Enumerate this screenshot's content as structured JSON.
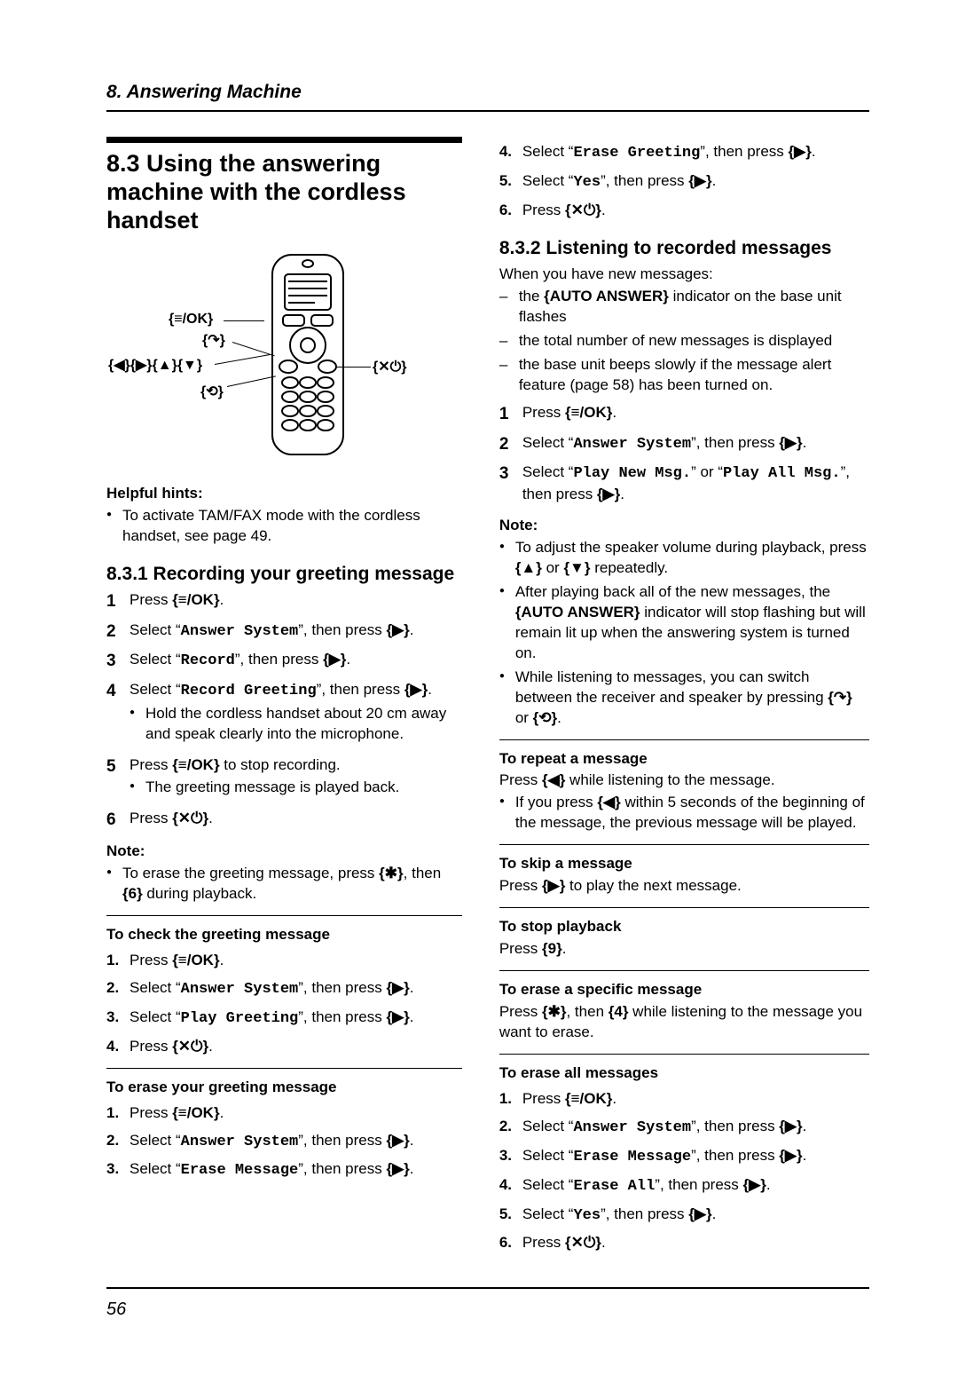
{
  "chapter": "8. Answering Machine",
  "page_number": "56",
  "icons": {
    "menu_ok": "{≡/OK}",
    "talk": "{↷}",
    "left": "{◀}",
    "right": "{▶}",
    "up": "{▲}",
    "down": "{▼}",
    "speaker": "{⟲}",
    "off": "{✕⏻}",
    "star": "{✱}",
    "six": "{6}",
    "nine": "{9}",
    "four": "{4}",
    "auto_answer": "{AUTO ANSWER}"
  },
  "left": {
    "section_title": "8.3 Using the answering machine with the cordless handset",
    "callouts": {
      "menu_ok": "{≡/OK}",
      "talk": "{↷}",
      "nav": "{◀}{▶}{▲}{▼}",
      "speaker": "{⟲}",
      "off": "{✕⏻}"
    },
    "helpful_head": "Helpful hints:",
    "helpful_bullets": [
      "To activate TAM/FAX mode with the cordless handset, see page 49."
    ],
    "sub1_title": "8.3.1 Recording your greeting message",
    "sub1_steps": [
      {
        "text": "Press {≡/OK}."
      },
      {
        "prefix": "Select “",
        "mono": "Answer System",
        "suffix": "”, then press {▶}."
      },
      {
        "prefix": "Select “",
        "mono": "Record",
        "suffix": "”, then press {▶}."
      },
      {
        "prefix": "Select “",
        "mono": "Record Greeting",
        "suffix": "”, then press {▶}.",
        "bullets": [
          "Hold the cordless handset about 20 cm away and speak clearly into the microphone."
        ]
      },
      {
        "text": "Press {≡/OK} to stop recording.",
        "bullets": [
          "The greeting message is played back."
        ]
      },
      {
        "text": "Press {✕⏻}."
      }
    ],
    "note_head": "Note:",
    "sub1_note_bullets": [
      "To erase the greeting message, press {✱}, then {6} during playback."
    ],
    "check_head": "To check the greeting message",
    "check_steps": [
      {
        "text": "Press {≡/OK}."
      },
      {
        "prefix": "Select “",
        "mono": "Answer System",
        "suffix": "”, then press {▶}."
      },
      {
        "prefix": "Select “",
        "mono": "Play Greeting",
        "suffix": "”, then press {▶}."
      },
      {
        "text": "Press {✕⏻}."
      }
    ],
    "erase_head": "To erase your greeting message",
    "erase_steps": [
      {
        "text": "Press {≡/OK}."
      },
      {
        "prefix": "Select “",
        "mono": "Answer System",
        "suffix": "”, then press {▶}."
      },
      {
        "prefix": "Select “",
        "mono": "Erase Message",
        "suffix": "”, then press {▶}."
      }
    ]
  },
  "right": {
    "erase_cont": [
      {
        "num": "4.",
        "prefix": "Select “",
        "mono": "Erase Greeting",
        "suffix": "”, then press {▶}."
      },
      {
        "num": "5.",
        "prefix": "Select “",
        "mono": "Yes",
        "suffix": "”, then press {▶}."
      },
      {
        "num": "6.",
        "text": "Press {✕⏻}."
      }
    ],
    "sub2_title": "8.3.2 Listening to recorded messages",
    "sub2_intro": "When you have new messages:",
    "sub2_dashes": [
      "the {AUTO ANSWER} indicator on the base unit flashes",
      "the total number of new messages is displayed",
      "the base unit beeps slowly if the message alert feature (page 58) has been turned on."
    ],
    "sub2_steps": [
      {
        "text": "Press {≡/OK}."
      },
      {
        "prefix": "Select “",
        "mono": "Answer System",
        "suffix": "”, then press {▶}."
      },
      {
        "prefix": "Select “",
        "mono": "Play New Msg.",
        "mid": "” or “",
        "mono2": "Play All Msg.",
        "suffix": "”, then press {▶}."
      }
    ],
    "note_head": "Note:",
    "sub2_note_bullets": [
      "To adjust the speaker volume during playback, press {▲} or {▼} repeatedly.",
      "After playing back all of the new messages, the {AUTO ANSWER} indicator will stop flashing but will remain lit up when the answering system is turned on.",
      "While listening to messages, you can switch between the receiver and speaker by pressing {↷} or {⟲}."
    ],
    "repeat_head": "To repeat a message",
    "repeat_line": "Press {◀} while listening to the message.",
    "repeat_bullets": [
      "If you press {◀} within 5 seconds of the beginning of the message, the previous message will be played."
    ],
    "skip_head": "To skip a message",
    "skip_line": "Press {▶} to play the next message.",
    "stop_head": "To stop playback",
    "stop_line": "Press {9}.",
    "erase_one_head": "To erase a specific message",
    "erase_one_line": "Press {✱}, then {4} while listening to the message you want to erase.",
    "erase_all_head": "To erase all messages",
    "erase_all_steps": [
      {
        "text": "Press {≡/OK}."
      },
      {
        "prefix": "Select “",
        "mono": "Answer System",
        "suffix": "”, then press {▶}."
      },
      {
        "prefix": "Select “",
        "mono": "Erase Message",
        "suffix": "”, then press {▶}."
      },
      {
        "prefix": "Select “",
        "mono": "Erase All",
        "suffix": "”, then press {▶}."
      },
      {
        "prefix": "Select “",
        "mono": "Yes",
        "suffix": "”, then press {▶}."
      },
      {
        "text": "Press {✕⏻}."
      }
    ]
  }
}
